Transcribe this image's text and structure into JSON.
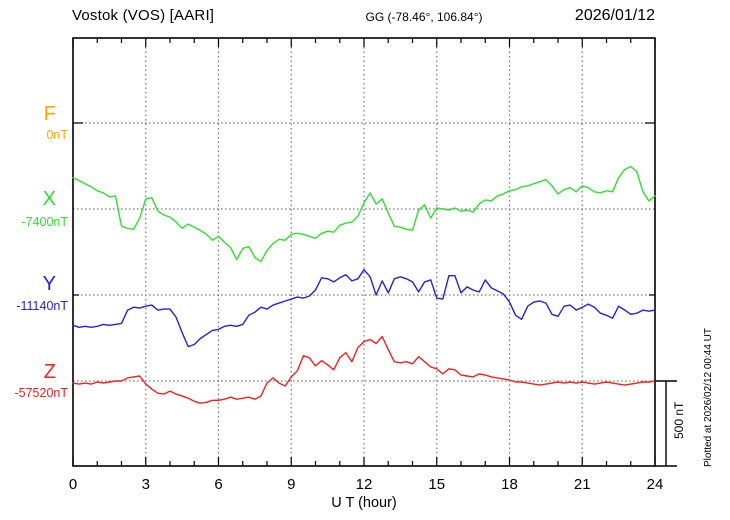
{
  "header": {
    "station_title": "Vostok (VOS)  [AARI]",
    "coordinates": "GG (-78.46°, 106.84°)",
    "date": "2026/01/12"
  },
  "side_note": "Plotted at 2026/02/12 00:44 UT",
  "axes": {
    "xlabel": "U T (hour)",
    "x_range_hours": [
      0,
      24
    ],
    "x_minor_step_hours": 1,
    "x_tick_hours": [
      0,
      3,
      6,
      9,
      12,
      15,
      18,
      21,
      24
    ],
    "x_tick_labels": [
      "0",
      "3",
      "6",
      "9",
      "12",
      "15",
      "18",
      "21",
      "24"
    ],
    "grid_vertical_hours": [
      3,
      6,
      9,
      12,
      15,
      18,
      21
    ],
    "y_minor_tick_nT": 100,
    "scale_bar_label": "500 nT",
    "scale_bar_nT": 500
  },
  "colors": {
    "axis": "#000000",
    "grid_dotted": "#777777",
    "F": "#FFA500",
    "X": "#30DD30",
    "Y": "#2222DD",
    "Z": "#EE2222"
  },
  "chart_data": {
    "type": "line",
    "title": "Vostok (VOS) [AARI] magnetogram, 2026/01/12",
    "x_unit": "UT hour",
    "xlim": [
      0,
      24
    ],
    "grid": "dotted 3-hour vertical lines and per-component baseline lines",
    "sampling": {
      "t0_hour": 0,
      "dt_hour": 0.25
    },
    "offsets_note": "offsets_nT = displacement of trace from its dotted baseline, scaled by the 500 nT bar; absolute component value = baseline_nT + offset. F trace has no plotted data.",
    "series": [
      {
        "id": "F",
        "label": "F",
        "baseline_label": "0nT",
        "baseline_nT": 0,
        "color": "#FFA500",
        "plotted": false,
        "offsets_nT": []
      },
      {
        "id": "X",
        "label": "X",
        "baseline_label": "-7400nT",
        "baseline_nT": -7400,
        "color": "#30DD30",
        "plotted": true,
        "offsets_nT": [
          182,
          165,
          147,
          129,
          106,
          94,
          71,
          76,
          -100,
          -112,
          -118,
          -53,
          59,
          65,
          -12,
          -35,
          -47,
          -76,
          -112,
          -88,
          -106,
          -124,
          -147,
          -182,
          -159,
          -194,
          -224,
          -294,
          -229,
          -218,
          -282,
          -306,
          -241,
          -200,
          -176,
          -182,
          -147,
          -141,
          -147,
          -159,
          -171,
          -141,
          -129,
          -135,
          -94,
          -82,
          -76,
          -41,
          35,
          94,
          29,
          59,
          -24,
          -100,
          -106,
          -118,
          -124,
          -6,
          24,
          -53,
          6,
          0,
          -6,
          6,
          -12,
          -6,
          -18,
          29,
          53,
          47,
          76,
          88,
          106,
          112,
          129,
          135,
          147,
          159,
          171,
          135,
          88,
          112,
          124,
          100,
          135,
          124,
          100,
          94,
          106,
          100,
          182,
          229,
          247,
          218,
          100,
          47,
          76
        ]
      },
      {
        "id": "Y",
        "label": "Y",
        "baseline_label": "-11140nT",
        "baseline_nT": -11140,
        "color": "#2222DD",
        "plotted": true,
        "offsets_nT": [
          -176,
          -188,
          -182,
          -188,
          -182,
          -171,
          -176,
          -171,
          -165,
          -88,
          -71,
          -76,
          -65,
          -59,
          -88,
          -82,
          -82,
          -129,
          -218,
          -300,
          -288,
          -253,
          -229,
          -206,
          -200,
          -182,
          -176,
          -182,
          -171,
          -118,
          -100,
          -71,
          -82,
          -59,
          -47,
          -35,
          -24,
          -12,
          -18,
          -6,
          29,
          100,
          94,
          76,
          100,
          118,
          82,
          94,
          147,
          106,
          0,
          82,
          12,
          94,
          106,
          94,
          76,
          18,
          76,
          88,
          -18,
          -24,
          112,
          112,
          12,
          47,
          29,
          18,
          88,
          41,
          24,
          6,
          -41,
          -118,
          -141,
          -65,
          -41,
          -35,
          -47,
          -112,
          -124,
          -65,
          -59,
          -88,
          -71,
          -53,
          -71,
          -106,
          -118,
          -135,
          -65,
          -88,
          -112,
          -106,
          -88,
          -94,
          -88
        ]
      },
      {
        "id": "Z",
        "label": "Z",
        "baseline_label": "-57520nT",
        "baseline_nT": -57520,
        "color": "#EE2222",
        "plotted": true,
        "offsets_nT": [
          -12,
          -18,
          -12,
          -18,
          -6,
          -12,
          -6,
          0,
          0,
          18,
          24,
          29,
          -18,
          -47,
          -71,
          -76,
          -59,
          -76,
          -88,
          -100,
          -118,
          -129,
          -124,
          -112,
          -112,
          -106,
          -94,
          -106,
          -100,
          -94,
          -106,
          -88,
          -12,
          18,
          -12,
          -29,
          24,
          59,
          147,
          135,
          88,
          118,
          94,
          65,
          135,
          165,
          112,
          194,
          229,
          241,
          218,
          259,
          182,
          112,
          106,
          112,
          100,
          141,
          112,
          82,
          71,
          41,
          71,
          65,
          35,
          29,
          24,
          41,
          35,
          24,
          18,
          12,
          6,
          -6,
          -6,
          -12,
          -18,
          -24,
          -18,
          -12,
          -6,
          -12,
          -6,
          -12,
          -6,
          -12,
          -18,
          -12,
          -6,
          -12,
          -18,
          -24,
          -18,
          -12,
          -6,
          -6,
          0
        ]
      }
    ]
  }
}
